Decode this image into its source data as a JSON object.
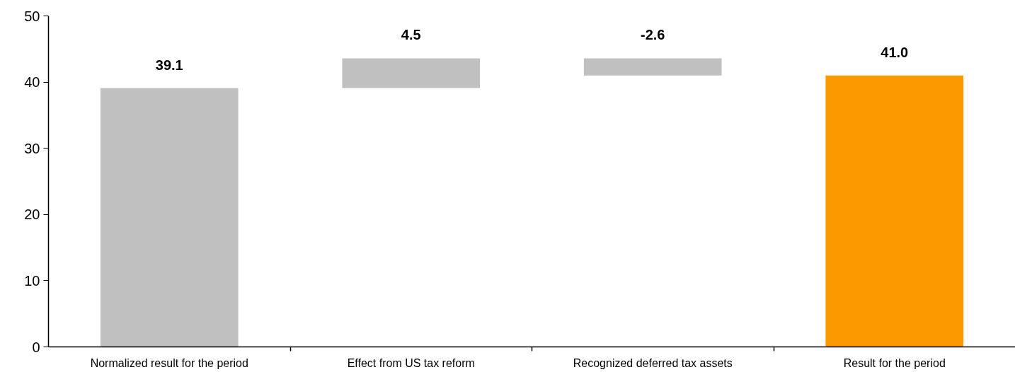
{
  "chart_data": {
    "type": "bar",
    "categories": [
      "Normalized result for the period",
      "Effect from US tax reform",
      "Recognized deferred tax assets",
      "Result for the period"
    ],
    "values": [
      39.1,
      4.5,
      -2.6,
      41.0
    ],
    "base": [
      0,
      39.1,
      43.6,
      0
    ],
    "colors": [
      "#c0c0c0",
      "#c0c0c0",
      "#c0c0c0",
      "#fc9900"
    ],
    "value_labels": [
      "39.1",
      "4.5",
      "-2.6",
      "41.0"
    ],
    "ylim": [
      0,
      50
    ],
    "yticks": [
      0,
      10,
      20,
      30,
      40,
      50
    ]
  }
}
